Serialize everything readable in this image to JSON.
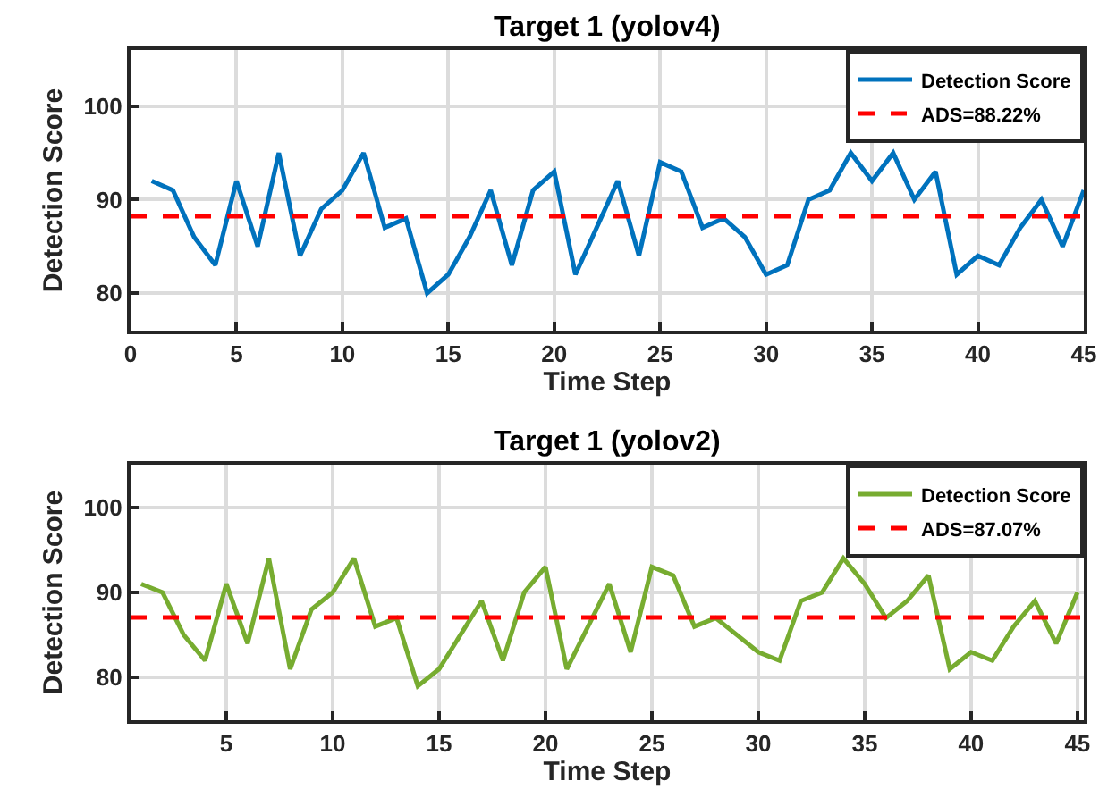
{
  "chart_data": [
    {
      "type": "line",
      "title": "Target 1 (yolov4)",
      "xlabel": "Time Step",
      "ylabel": "Detection Score",
      "x": [
        1,
        2,
        3,
        4,
        5,
        6,
        7,
        8,
        9,
        10,
        11,
        12,
        13,
        14,
        15,
        16,
        17,
        18,
        19,
        20,
        21,
        22,
        23,
        24,
        25,
        26,
        27,
        28,
        29,
        30,
        31,
        32,
        33,
        34,
        35,
        36,
        37,
        38,
        39,
        40,
        41,
        42,
        43,
        44,
        45
      ],
      "series": [
        {
          "name": "Detection Score",
          "color": "#0072bd",
          "values": [
            92,
            91,
            86,
            83,
            92,
            85,
            95,
            84,
            89,
            91,
            95,
            87,
            88,
            80,
            82,
            86,
            91,
            83,
            91,
            93,
            82,
            87,
            92,
            84,
            94,
            93,
            87,
            88,
            86,
            82,
            83,
            90,
            91,
            95,
            92,
            95,
            90,
            93,
            82,
            84,
            83,
            87,
            90,
            85,
            91
          ]
        }
      ],
      "ref_lines": [
        {
          "axis": "y",
          "value": 88.22,
          "label": "ADS=88.22%",
          "color": "#ff0000",
          "line_style": "dashed"
        }
      ],
      "xlim": [
        0,
        45
      ],
      "xticks": [
        0,
        5,
        10,
        15,
        20,
        25,
        30,
        35,
        40,
        45
      ],
      "ylim": [
        76,
        106
      ],
      "yticks": [
        80,
        90,
        100
      ],
      "grid": true,
      "legend": "top right",
      "line_style": "solid"
    },
    {
      "type": "line",
      "title": "Target 1 (yolov2)",
      "xlabel": "Time Step",
      "ylabel": "Detection Score",
      "x": [
        1,
        2,
        3,
        4,
        5,
        6,
        7,
        8,
        9,
        10,
        11,
        12,
        13,
        14,
        15,
        16,
        17,
        18,
        19,
        20,
        21,
        22,
        23,
        24,
        25,
        26,
        27,
        28,
        29,
        30,
        31,
        32,
        33,
        34,
        35,
        36,
        37,
        38,
        39,
        40,
        41,
        42,
        43,
        44,
        45
      ],
      "series": [
        {
          "name": "Detection Score",
          "color": "#77ac30",
          "values": [
            91,
            90,
            85,
            82,
            91,
            84,
            94,
            81,
            88,
            90,
            94,
            86,
            87,
            79,
            81,
            85,
            89,
            82,
            90,
            93,
            81,
            86,
            91,
            83,
            93,
            92,
            86,
            87,
            85,
            83,
            82,
            89,
            90,
            94,
            91,
            87,
            89,
            92,
            81,
            83,
            82,
            86,
            89,
            84,
            90
          ]
        }
      ],
      "ref_lines": [
        {
          "axis": "y",
          "value": 87.07,
          "label": "ADS=87.07%",
          "color": "#ff0000",
          "line_style": "dashed"
        }
      ],
      "xlim": [
        0.5,
        45.3
      ],
      "xticks": [
        5,
        10,
        15,
        20,
        25,
        30,
        35,
        40,
        45
      ],
      "ylim": [
        75,
        105
      ],
      "yticks": [
        80,
        90,
        100
      ],
      "grid": true,
      "legend": "top right",
      "line_style": "solid"
    }
  ]
}
